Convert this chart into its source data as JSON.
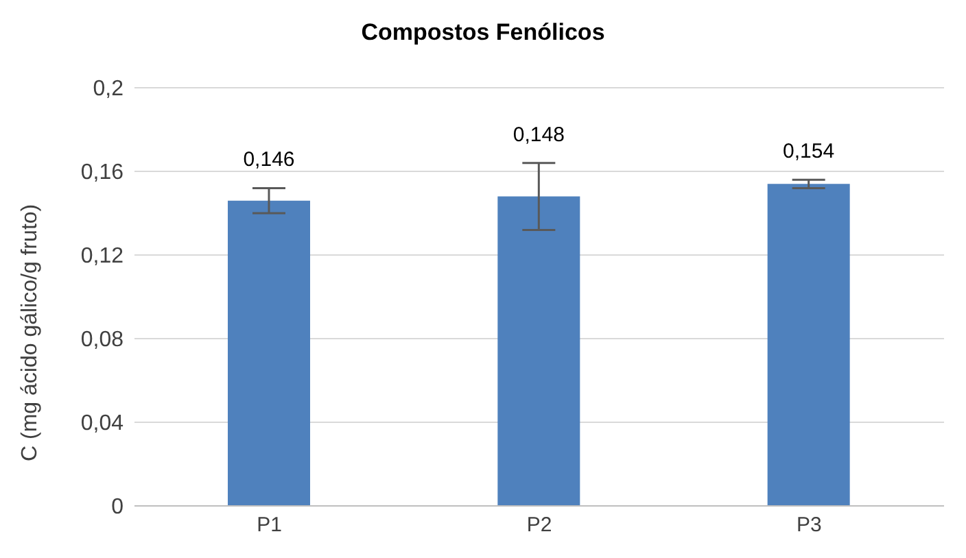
{
  "chart_data": {
    "type": "bar",
    "title": "Compostos Fenólicos",
    "ylabel": "C (mg ácido gálico/g fruto)",
    "categories": [
      "P1",
      "P2",
      "P3"
    ],
    "values": [
      0.146,
      0.148,
      0.154
    ],
    "errors": [
      0.006,
      0.016,
      0.002
    ],
    "color": "#4f81bd",
    "ylim": [
      0,
      0.2
    ],
    "yticks": [
      {
        "value": 0,
        "label": "0"
      },
      {
        "value": 0.04,
        "label": "0,04"
      },
      {
        "value": 0.08,
        "label": "0,08"
      },
      {
        "value": 0.12,
        "label": "0,12"
      },
      {
        "value": 0.16,
        "label": "0,16"
      },
      {
        "value": 0.2,
        "label": "0,2"
      }
    ],
    "value_labels": [
      "0,146",
      "0,148",
      "0,154"
    ],
    "grid": "y",
    "legend": false
  }
}
